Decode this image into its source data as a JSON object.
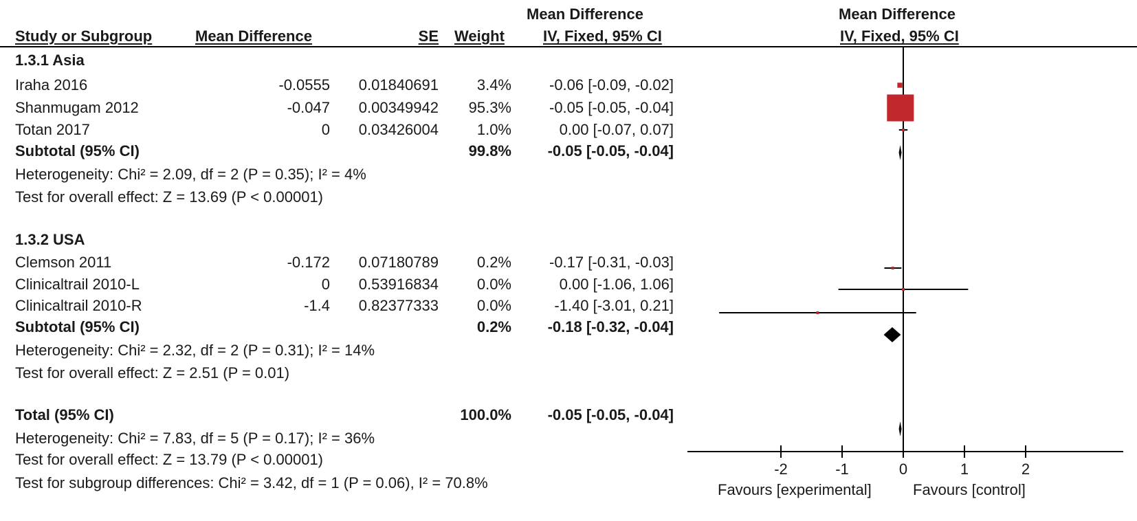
{
  "header": {
    "col_study": "Study or Subgroup",
    "col_md": "Mean Difference",
    "col_se": "SE",
    "col_weight": "Weight",
    "col_ci_title": "Mean Difference",
    "col_ci_sub": "IV, Fixed, 95% CI",
    "plot_title": "Mean Difference",
    "plot_sub": "IV, Fixed, 95% CI"
  },
  "subgroups": [
    {
      "title": "1.3.1 Asia",
      "studies": [
        {
          "name": "Iraha 2016",
          "md": "-0.0555",
          "se": "0.01840691",
          "weight": "3.4%",
          "ci": "-0.06 [-0.09, -0.02]"
        },
        {
          "name": "Shanmugam 2012",
          "md": "-0.047",
          "se": "0.00349942",
          "weight": "95.3%",
          "ci": "-0.05 [-0.05, -0.04]"
        },
        {
          "name": "Totan 2017",
          "md": "0",
          "se": "0.03426004",
          "weight": "1.0%",
          "ci": "0.00 [-0.07, 0.07]"
        }
      ],
      "subtotal": {
        "label": "Subtotal (95% CI)",
        "weight": "99.8%",
        "ci": "-0.05 [-0.05, -0.04]"
      },
      "heterogeneity": "Heterogeneity: Chi² = 2.09, df = 2 (P = 0.35); I² = 4%",
      "overall": "Test for overall effect: Z = 13.69 (P < 0.00001)"
    },
    {
      "title": "1.3.2 USA",
      "studies": [
        {
          "name": "Clemson 2011",
          "md": "-0.172",
          "se": "0.07180789",
          "weight": "0.2%",
          "ci": "-0.17 [-0.31, -0.03]"
        },
        {
          "name": "Clinicaltrail 2010-L",
          "md": "0",
          "se": "0.53916834",
          "weight": "0.0%",
          "ci": "0.00 [-1.06, 1.06]"
        },
        {
          "name": "Clinicaltrail 2010-R",
          "md": "-1.4",
          "se": "0.82377333",
          "weight": "0.0%",
          "ci": "-1.40 [-3.01, 0.21]"
        }
      ],
      "subtotal": {
        "label": "Subtotal (95% CI)",
        "weight": "0.2%",
        "ci": "-0.18 [-0.32, -0.04]"
      },
      "heterogeneity": "Heterogeneity: Chi² = 2.32, df = 2 (P = 0.31); I² = 14%",
      "overall": "Test for overall effect: Z = 2.51 (P = 0.01)"
    }
  ],
  "total": {
    "label": "Total (95% CI)",
    "weight": "100.0%",
    "ci": "-0.05 [-0.05, -0.04]",
    "heterogeneity": "Heterogeneity: Chi² = 7.83, df = 5 (P = 0.17); I² = 36%",
    "overall": "Test for overall effect: Z = 13.79 (P < 0.00001)",
    "subgroup_diff": "Test for subgroup differences: Chi² = 3.42, df = 1 (P = 0.06), I² = 70.8%"
  },
  "axis": {
    "ticks": [
      -2,
      -1,
      0,
      1,
      2
    ],
    "tick_labels": [
      "-2",
      "-1",
      "0",
      "1",
      "2"
    ],
    "favours_left": "Favours [experimental]",
    "favours_right": "Favours [control]"
  },
  "colors": {
    "study_marker": "#c0282d",
    "diamond": "#000000",
    "line": "#000000"
  },
  "chart_data": {
    "type": "forest",
    "xlim": [
      -3.5,
      3.5
    ],
    "studies": [
      {
        "name": "Iraha 2016",
        "md": -0.0555,
        "lo": -0.09,
        "hi": -0.02,
        "weight": 3.4
      },
      {
        "name": "Shanmugam 2012",
        "md": -0.047,
        "lo": -0.05,
        "hi": -0.04,
        "weight": 95.3
      },
      {
        "name": "Totan 2017",
        "md": 0.0,
        "lo": -0.07,
        "hi": 0.07,
        "weight": 1.0
      },
      {
        "name": "Clemson 2011",
        "md": -0.172,
        "lo": -0.31,
        "hi": -0.03,
        "weight": 0.2
      },
      {
        "name": "Clinicaltrail 2010-L",
        "md": 0.0,
        "lo": -1.06,
        "hi": 1.06,
        "weight": 0.0
      },
      {
        "name": "Clinicaltrail 2010-R",
        "md": -1.4,
        "lo": -3.01,
        "hi": 0.21,
        "weight": 0.0
      }
    ],
    "pooled": [
      {
        "name": "Subtotal Asia",
        "md": -0.05,
        "lo": -0.05,
        "hi": -0.04
      },
      {
        "name": "Subtotal USA",
        "md": -0.18,
        "lo": -0.32,
        "hi": -0.04
      },
      {
        "name": "Total",
        "md": -0.05,
        "lo": -0.05,
        "hi": -0.04
      }
    ]
  }
}
